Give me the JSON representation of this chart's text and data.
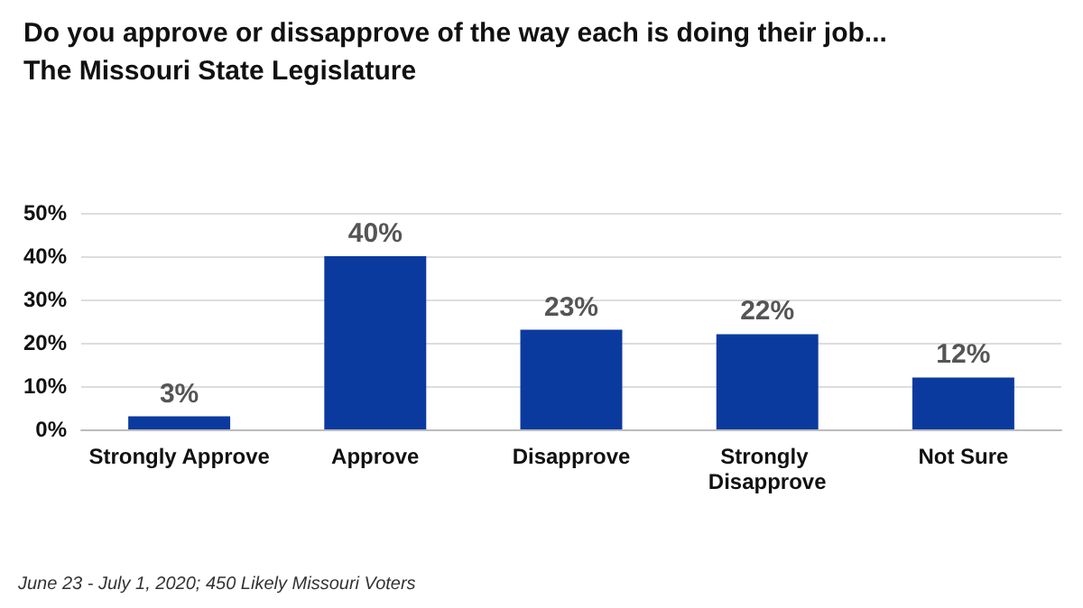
{
  "chart_data": {
    "type": "bar",
    "title": "Do you approve or dissapprove of the way each is doing their job...",
    "subtitle": "The Missouri State Legislature",
    "categories": [
      "Strongly Approve",
      "Approve",
      "Disapprove",
      "Strongly Disapprove",
      "Not Sure"
    ],
    "values": [
      3,
      40,
      23,
      22,
      12
    ],
    "color": "#0b3a9f",
    "value_labels": [
      "3%",
      "40%",
      "23%",
      "22%",
      "12%"
    ],
    "ylim": [
      0,
      50
    ],
    "yticks": [
      {
        "value": 0,
        "label": "0%"
      },
      {
        "value": 10,
        "label": "10%"
      },
      {
        "value": 20,
        "label": "20%"
      },
      {
        "value": 30,
        "label": "30%"
      },
      {
        "value": 40,
        "label": "40%"
      },
      {
        "value": 50,
        "label": "50%"
      }
    ],
    "grid": "y",
    "annotations": [
      "June 23 - July 1, 2020; 450 Likely Missouri Voters"
    ]
  }
}
